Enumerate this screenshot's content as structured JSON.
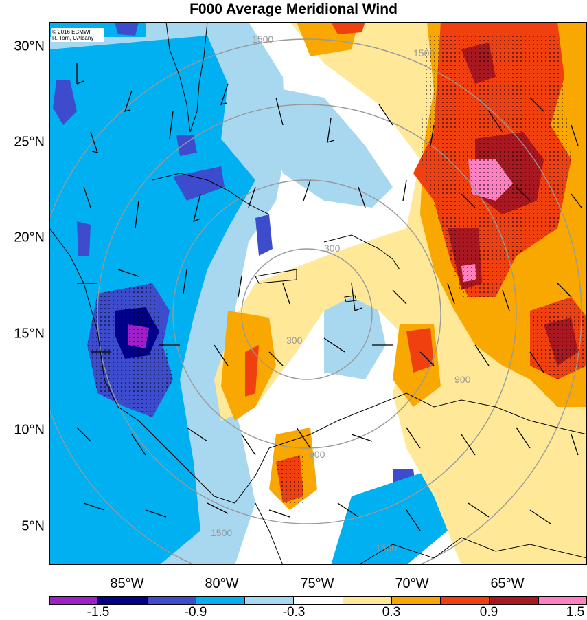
{
  "title": "F000 Average Meridional Wind",
  "credit": [
    "© 2016 ECMWF",
    "R. Torn, UAlbany"
  ],
  "lat_labels": [
    "30°N",
    "25°N",
    "20°N",
    "15°N",
    "10°N",
    "5°N"
  ],
  "lon_labels": [
    "85°W",
    "80°W",
    "75°W",
    "70°W",
    "65°W"
  ],
  "colorbar": {
    "labels": [
      "-1.5",
      "-0.9",
      "-0.3",
      "0.3",
      "0.9",
      "1.5"
    ],
    "colors": [
      "#a020c8",
      "#00008a",
      "#3c4ccc",
      "#00b0f0",
      "#a8d8f0",
      "#ffffff",
      "#ffe898",
      "#f8a800",
      "#f04010",
      "#a81820",
      "#ff80c0"
    ]
  },
  "range_ring_labels": [
    "300",
    "900",
    "1500"
  ],
  "colors": {
    "ring": "#999999",
    "coast": "#000000",
    "neutral": "#ffffff"
  }
}
